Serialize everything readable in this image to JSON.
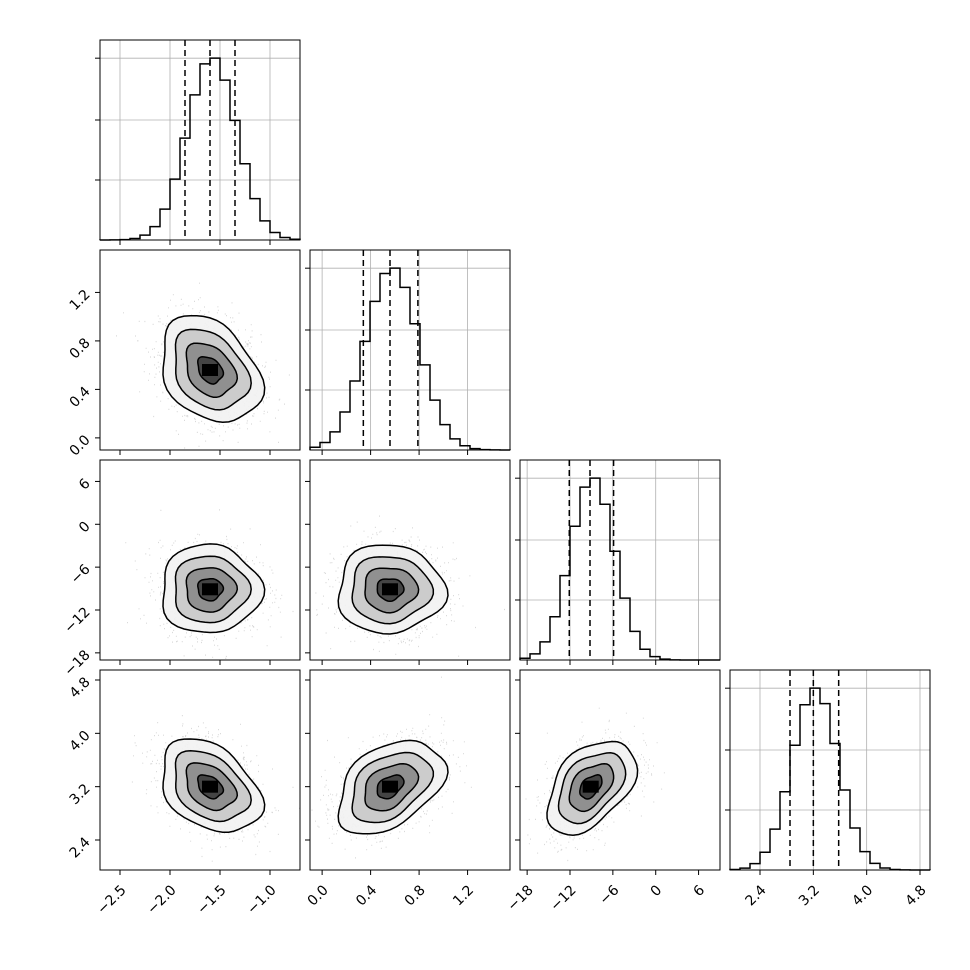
{
  "chart_data": {
    "type": "corner",
    "parameters": [
      {
        "index": 0,
        "range": [
          -2.7,
          -0.7
        ],
        "ticks": [
          -2.5,
          -2.0,
          -1.5,
          -1.0
        ],
        "tick_labels": [
          "−2.5",
          "−2.0",
          "−1.5",
          "−1.0"
        ],
        "quantiles": [
          -1.85,
          -1.6,
          -1.35
        ],
        "mean": -1.6,
        "sd": 0.25
      },
      {
        "index": 1,
        "range": [
          -0.1,
          1.55
        ],
        "ticks": [
          0.0,
          0.4,
          0.8,
          1.2
        ],
        "tick_labels": [
          "0.0",
          "0.4",
          "0.8",
          "1.2"
        ],
        "quantiles": [
          0.34,
          0.56,
          0.79
        ],
        "mean": 0.56,
        "sd": 0.22
      },
      {
        "index": 2,
        "range": [
          -19,
          9
        ],
        "ticks": [
          -18,
          -12,
          -6,
          0,
          6
        ],
        "tick_labels": [
          "−18",
          "−12",
          "−6",
          "0",
          "6"
        ],
        "quantiles": [
          -12.1,
          -9.2,
          -5.9
        ],
        "mean": -9.1,
        "sd": 3.1
      },
      {
        "index": 3,
        "range": [
          1.95,
          4.95
        ],
        "ticks": [
          2.4,
          3.2,
          4.0,
          4.8
        ],
        "tick_labels": [
          "2.4",
          "3.2",
          "4.0",
          "4.8"
        ],
        "quantiles": [
          2.85,
          3.2,
          3.58
        ],
        "mean": 3.2,
        "sd": 0.35
      }
    ],
    "pair_correlations": [
      {
        "x": 0,
        "y": 1,
        "rho": -0.3
      },
      {
        "x": 0,
        "y": 2,
        "rho": 0.0
      },
      {
        "x": 1,
        "y": 2,
        "rho": 0.0
      },
      {
        "x": 0,
        "y": 3,
        "rho": -0.35
      },
      {
        "x": 1,
        "y": 3,
        "rho": 0.4
      },
      {
        "x": 2,
        "y": 3,
        "rho": 0.45
      }
    ],
    "contour_levels_sigma": [
      0.5,
      1.0,
      1.5,
      2.0
    ],
    "grid": true
  }
}
